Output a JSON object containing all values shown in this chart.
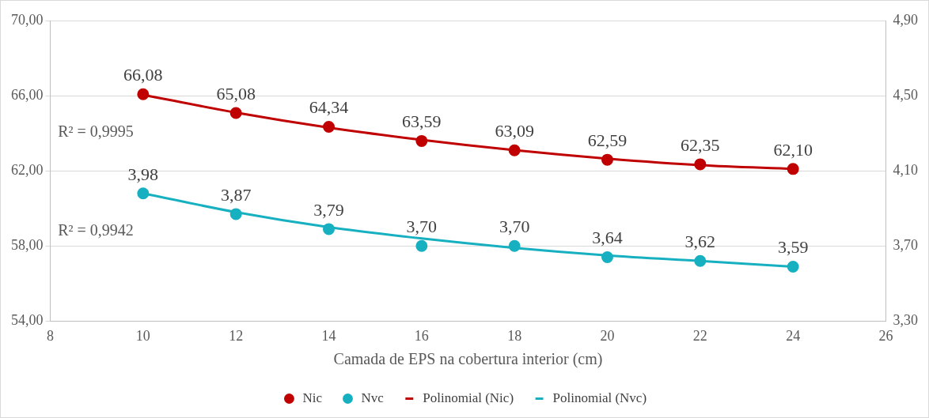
{
  "chart_data": {
    "type": "scatter",
    "xlabel": "Camada de EPS na cobertura interior (cm)",
    "xlim": [
      8,
      26
    ],
    "xticks": [
      8,
      10,
      12,
      14,
      16,
      18,
      20,
      22,
      24,
      26
    ],
    "ylim": [
      54,
      70
    ],
    "yticks": [
      {
        "value": 54,
        "label": "54,00"
      },
      {
        "value": 58,
        "label": "58,00"
      },
      {
        "value": 62,
        "label": "62,00"
      },
      {
        "value": 66,
        "label": "66,00"
      },
      {
        "value": 70,
        "label": "70,00"
      }
    ],
    "y2lim": [
      3.3,
      4.9
    ],
    "y2ticks": [
      {
        "value": 3.3,
        "label": "3,30"
      },
      {
        "value": 3.7,
        "label": "3,70"
      },
      {
        "value": 4.1,
        "label": "4,10"
      },
      {
        "value": 4.5,
        "label": "4,50"
      },
      {
        "value": 4.9,
        "label": "4,90"
      }
    ],
    "grid": "y",
    "legend": "bottom",
    "marker": "circle",
    "x": [
      10,
      12,
      14,
      16,
      18,
      20,
      22,
      24
    ],
    "series": [
      {
        "name": "Nic",
        "type": "scatter",
        "color": "#c00000",
        "values": [
          66.08,
          65.08,
          64.34,
          63.59,
          63.09,
          62.59,
          62.35,
          62.1
        ],
        "value_labels": [
          "66,08",
          "65,08",
          "64,34",
          "63,59",
          "63,09",
          "62,59",
          "62,35",
          "62,10"
        ]
      },
      {
        "name": "Nvc",
        "type": "scatter",
        "axis": "y2",
        "color": "#17b0c0",
        "values": [
          3.98,
          3.87,
          3.79,
          3.7,
          3.7,
          3.64,
          3.62,
          3.59
        ],
        "value_labels": [
          "3,98",
          "3,87",
          "3,79",
          "3,70",
          "3,70",
          "3,64",
          "3,62",
          "3,59"
        ]
      },
      {
        "name": "Polinomial (Nic)",
        "type": "line",
        "line_style": "solid",
        "marker": "none",
        "color": "#c00000",
        "x": [
          10,
          12,
          14,
          16,
          18,
          20,
          22,
          24
        ],
        "values": [
          66.05,
          65.1,
          64.3,
          63.65,
          63.1,
          62.65,
          62.3,
          62.1
        ]
      },
      {
        "name": "Polinomial (Nvc)",
        "type": "line",
        "line_style": "solid",
        "marker": "none",
        "axis": "y2",
        "color": "#17b0c0",
        "x": [
          10,
          12,
          14,
          16,
          18,
          20,
          22,
          24
        ],
        "values": [
          3.98,
          3.88,
          3.8,
          3.74,
          3.69,
          3.65,
          3.62,
          3.59
        ]
      }
    ],
    "annotations": [
      "R² = 0,9995",
      "R² = 0,9942"
    ]
  }
}
